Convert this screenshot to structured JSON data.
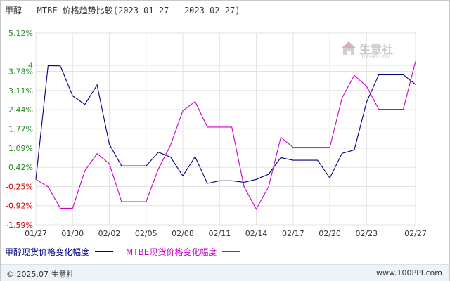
{
  "title": "甲醇 - MTBE 价格趋势比较(2023-01-27 - 2023-02-27)",
  "watermark": {
    "text": "生意社",
    "sub": "100PPI.COM"
  },
  "footer": {
    "left": "© 2025.07 生意社",
    "right": "www.100PPI.com"
  },
  "chart_data": {
    "type": "line",
    "title": "甲醇 - MTBE 价格趋势比较(2023-01-27 - 2023-02-27)",
    "x_tick_labels": [
      "01/27",
      "01/30",
      "02/02",
      "02/05",
      "02/08",
      "02/11",
      "02/14",
      "02/17",
      "02/20",
      "02/23",
      "02/27"
    ],
    "y_tick_labels": [
      "5.12%",
      "4",
      "3.78%",
      "3.11%",
      "2.44%",
      "1.77%",
      "1.09%",
      "0.42%",
      "-0.25%",
      "-0.92%",
      "-1.59%"
    ],
    "y_ticks": [
      5.12,
      4,
      3.78,
      3.11,
      2.44,
      1.77,
      1.09,
      0.42,
      -0.25,
      -0.92,
      -1.59
    ],
    "ylim": [
      -1.59,
      5.12
    ],
    "reference_line": 4,
    "grid": true,
    "legend_position": "bottom-left",
    "x_count": 32,
    "series": [
      {
        "name": "甲醇现货价格变化幅度",
        "color": "#000080",
        "values": [
          0,
          3.98,
          3.97,
          2.92,
          2.62,
          3.3,
          1.23,
          0.47,
          0.47,
          0.47,
          0.95,
          0.78,
          0.12,
          0.79,
          -0.14,
          -0.05,
          -0.05,
          -0.1,
          0,
          0.18,
          0.76,
          0.67,
          0.67,
          0.67,
          0.05,
          0.91,
          1.03,
          2.7,
          3.66,
          3.66,
          3.66,
          3.32
        ]
      },
      {
        "name": "MTBE现货价格变化幅度",
        "color": "#cc00cc",
        "values": [
          0,
          -0.26,
          -1.01,
          -1.01,
          0.3,
          0.9,
          0.55,
          -0.78,
          -0.78,
          -0.78,
          0.36,
          1.2,
          2.4,
          2.72,
          1.83,
          1.83,
          1.83,
          -0.26,
          -1.04,
          -0.26,
          1.47,
          1.12,
          1.12,
          1.12,
          1.12,
          2.85,
          3.64,
          3.26,
          2.45,
          2.45,
          2.45,
          4.13
        ]
      }
    ]
  }
}
